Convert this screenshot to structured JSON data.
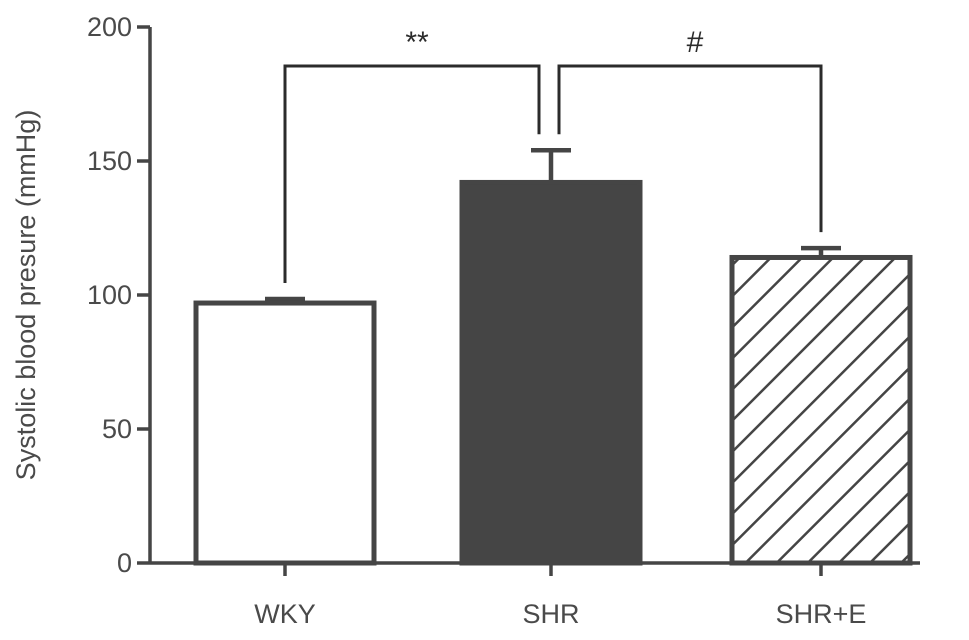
{
  "chart_data": {
    "type": "bar",
    "title": "",
    "xlabel": "",
    "ylabel": "Systolic blood presure (mmHg)",
    "ylim": [
      0,
      200
    ],
    "yticks": [
      0,
      50,
      100,
      150,
      200
    ],
    "categories": [
      "WKY",
      "SHR",
      "SHR+E"
    ],
    "values": [
      97,
      142,
      114
    ],
    "errors": [
      1.5,
      12,
      3.5
    ],
    "fills": [
      "#ffffff",
      "#454545",
      "hatched"
    ],
    "colors": {
      "axis": "#454545",
      "bar_dark": "#454545",
      "bracket": "#2b2b2b"
    },
    "annotations": [
      {
        "from": "WKY",
        "to": "SHR",
        "label": "**"
      },
      {
        "from": "SHR",
        "to": "SHR+E",
        "label": "#"
      }
    ]
  }
}
